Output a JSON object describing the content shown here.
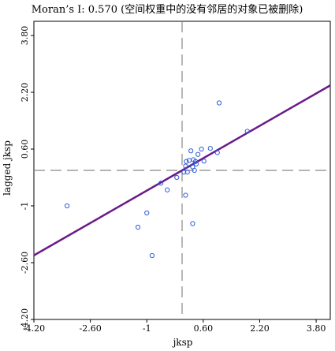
{
  "chart_data": {
    "type": "scatter",
    "title": "Moran’s I: 0.570 (空间权重中的没有邻居的对象已被删除)",
    "xlabel": "jksp",
    "ylabel": "lagged jksp",
    "xlim": [
      -4.2,
      4.2
    ],
    "ylim": [
      -4.2,
      4.2
    ],
    "xticks": [
      "-4.20",
      "-2.60",
      "-1",
      "0.60",
      "2.20",
      "3.80"
    ],
    "yticks": [
      "-4.20",
      "-2.60",
      "-1",
      "0.60",
      "2.20",
      "3.80"
    ],
    "mean_x": 0.0,
    "mean_y": 0.0,
    "regression": {
      "slope": 0.57,
      "intercept": 0.0
    },
    "points": [
      {
        "x": -3.26,
        "y": -1.0
      },
      {
        "x": -1.25,
        "y": -1.6
      },
      {
        "x": -1.0,
        "y": -1.2
      },
      {
        "x": -0.85,
        "y": -2.4
      },
      {
        "x": -0.6,
        "y": -0.36
      },
      {
        "x": -0.42,
        "y": -0.55
      },
      {
        "x": -0.15,
        "y": -0.2
      },
      {
        "x": 0.05,
        "y": -0.05
      },
      {
        "x": 0.1,
        "y": 0.12
      },
      {
        "x": 0.12,
        "y": 0.25
      },
      {
        "x": 0.15,
        "y": -0.05
      },
      {
        "x": 0.2,
        "y": 0.28
      },
      {
        "x": 0.25,
        "y": 0.55
      },
      {
        "x": 0.3,
        "y": 0.1
      },
      {
        "x": 0.32,
        "y": 0.3
      },
      {
        "x": 0.35,
        "y": 0.0
      },
      {
        "x": 0.38,
        "y": 0.25
      },
      {
        "x": 0.4,
        "y": 0.18
      },
      {
        "x": 0.45,
        "y": 0.45
      },
      {
        "x": 0.55,
        "y": 0.6
      },
      {
        "x": 0.62,
        "y": 0.26
      },
      {
        "x": 0.8,
        "y": 0.62
      },
      {
        "x": 0.1,
        "y": -0.7
      },
      {
        "x": 0.3,
        "y": -1.5
      },
      {
        "x": 1.0,
        "y": 0.5
      },
      {
        "x": 1.05,
        "y": 1.9
      },
      {
        "x": 1.85,
        "y": 1.1
      }
    ],
    "colors": {
      "points": "#2b5fd9",
      "regression": "#6a1a8a",
      "axes": "#000000",
      "mean_lines": "#888888"
    },
    "grid": false
  }
}
